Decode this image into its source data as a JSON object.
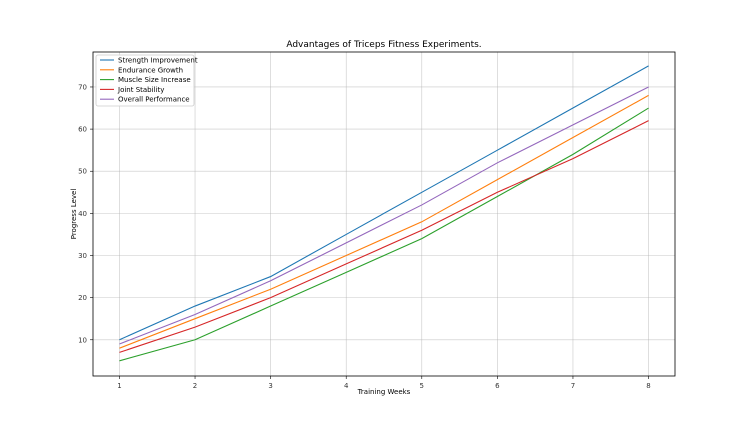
{
  "chart_data": {
    "type": "line",
    "title": "Advantages of Triceps Fitness Experiments.",
    "xlabel": "Training Weeks",
    "ylabel": "Progress Level",
    "x": [
      1,
      2,
      3,
      4,
      5,
      6,
      7,
      8
    ],
    "x_ticks": [
      "1",
      "2",
      "3",
      "4",
      "5",
      "6",
      "7",
      "8"
    ],
    "y_ticks": [
      "10",
      "20",
      "30",
      "40",
      "50",
      "60",
      "70"
    ],
    "ylim": [
      1.4,
      78.3
    ],
    "xlim": [
      0.65,
      8.35
    ],
    "grid": true,
    "legend_position": "upper left",
    "series": [
      {
        "name": "Strength Improvement",
        "color": "#1f77b4",
        "values": [
          10,
          18,
          25,
          35,
          45,
          55,
          65,
          75
        ]
      },
      {
        "name": "Endurance Growth",
        "color": "#ff7f0e",
        "values": [
          8,
          15,
          22,
          30,
          38,
          48,
          58,
          68
        ]
      },
      {
        "name": "Muscle Size Increase",
        "color": "#2ca02c",
        "values": [
          5,
          10,
          18,
          26,
          34,
          44,
          54,
          65
        ]
      },
      {
        "name": "Joint Stability",
        "color": "#d62728",
        "values": [
          7,
          13,
          20,
          28,
          36,
          45,
          53,
          62
        ]
      },
      {
        "name": "Overall Performance",
        "color": "#9467bd",
        "values": [
          9,
          16,
          24,
          33,
          42,
          52,
          61,
          70
        ]
      }
    ]
  }
}
